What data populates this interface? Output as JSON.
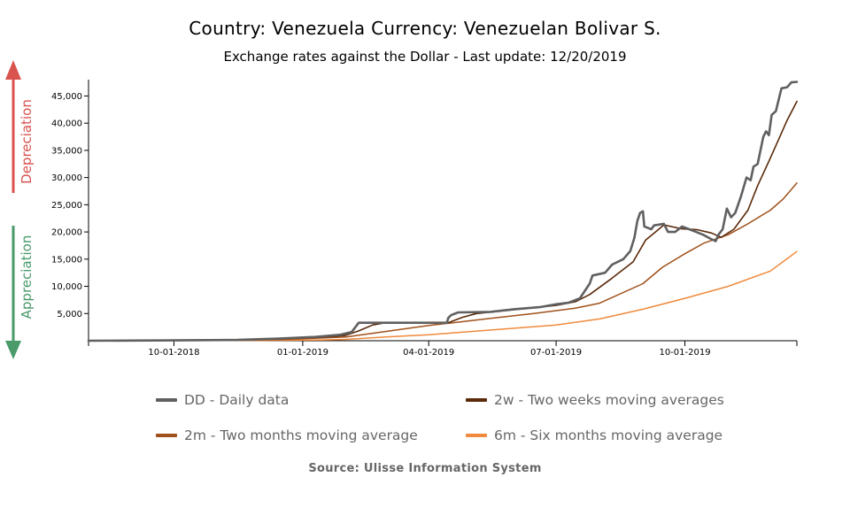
{
  "title": "Country: Venezuela Currency: Venezuelan Bolivar S.",
  "subtitle": "Exchange rates against the Dollar - Last update: 12/20/2019",
  "side_labels": {
    "up": "Depreciation",
    "down": "Appreciation"
  },
  "colors": {
    "up": "#d9534f",
    "down": "#4a9a6a"
  },
  "source": "Source: Ulisse Information System",
  "chart_data": {
    "type": "line",
    "title": "Country: Venezuela Currency: Venezuelan Bolivar S.",
    "subtitle": "Exchange rates against the Dollar - Last update: 12/20/2019",
    "x_range": [
      "2018-08-01",
      "2019-12-20"
    ],
    "ylim": [
      0,
      48000
    ],
    "y_ticks": [
      5000,
      10000,
      15000,
      20000,
      25000,
      30000,
      35000,
      40000,
      45000
    ],
    "y_tick_labels": [
      "5,000",
      "10,000",
      "15,000",
      "20,000",
      "25,000",
      "30,000",
      "35,000",
      "40,000",
      "45,000"
    ],
    "x_ticks": [
      "2018-10-01",
      "2019-01-01",
      "2019-04-01",
      "2019-07-01",
      "2019-10-01"
    ],
    "x_tick_labels": [
      "10-01-2018",
      "01-01-2019",
      "04-01-2019",
      "07-01-2019",
      "10-01-2019"
    ],
    "legend_position": "bottom",
    "series": [
      {
        "name": "DD - Daily data",
        "color": "#606060",
        "width": 2.6,
        "points": [
          [
            "2018-08-01",
            5
          ],
          [
            "2018-10-01",
            60
          ],
          [
            "2018-11-15",
            150
          ],
          [
            "2018-12-15",
            400
          ],
          [
            "2019-01-10",
            700
          ],
          [
            "2019-01-28",
            1100
          ],
          [
            "2019-02-05",
            1600
          ],
          [
            "2019-02-10",
            3300
          ],
          [
            "2019-03-01",
            3300
          ],
          [
            "2019-03-31",
            3300
          ],
          [
            "2019-04-01",
            3300
          ],
          [
            "2019-04-14",
            3300
          ],
          [
            "2019-04-15",
            4200
          ],
          [
            "2019-04-17",
            4700
          ],
          [
            "2019-04-22",
            5200
          ],
          [
            "2019-05-15",
            5300
          ],
          [
            "2019-06-01",
            5800
          ],
          [
            "2019-06-20",
            6200
          ],
          [
            "2019-07-01",
            6700
          ],
          [
            "2019-07-10",
            7000
          ],
          [
            "2019-07-18",
            7800
          ],
          [
            "2019-07-25",
            10500
          ],
          [
            "2019-07-27",
            12000
          ],
          [
            "2019-08-05",
            12500
          ],
          [
            "2019-08-10",
            14000
          ],
          [
            "2019-08-18",
            15000
          ],
          [
            "2019-08-23",
            16500
          ],
          [
            "2019-08-26",
            19000
          ],
          [
            "2019-08-28",
            22000
          ],
          [
            "2019-08-30",
            23500
          ],
          [
            "2019-09-01",
            23800
          ],
          [
            "2019-09-02",
            21000
          ],
          [
            "2019-09-07",
            20500
          ],
          [
            "2019-09-09",
            21200
          ],
          [
            "2019-09-16",
            21500
          ],
          [
            "2019-09-19",
            20000
          ],
          [
            "2019-09-24",
            20000
          ],
          [
            "2019-09-29",
            21000
          ],
          [
            "2019-10-04",
            20500
          ],
          [
            "2019-10-09",
            20000
          ],
          [
            "2019-10-14",
            19500
          ],
          [
            "2019-10-19",
            18800
          ],
          [
            "2019-10-23",
            18300
          ],
          [
            "2019-10-25",
            19500
          ],
          [
            "2019-10-28",
            20500
          ],
          [
            "2019-10-31",
            24300
          ],
          [
            "2019-11-03",
            22700
          ],
          [
            "2019-11-06",
            23500
          ],
          [
            "2019-11-10",
            26500
          ],
          [
            "2019-11-14",
            30000
          ],
          [
            "2019-11-17",
            29500
          ],
          [
            "2019-11-19",
            32000
          ],
          [
            "2019-11-22",
            32500
          ],
          [
            "2019-11-26",
            37500
          ],
          [
            "2019-11-28",
            38500
          ],
          [
            "2019-11-30",
            37800
          ],
          [
            "2019-12-02",
            41500
          ],
          [
            "2019-12-05",
            42200
          ],
          [
            "2019-12-09",
            46400
          ],
          [
            "2019-12-13",
            46600
          ],
          [
            "2019-12-16",
            47500
          ],
          [
            "2019-12-20",
            47600
          ]
        ]
      },
      {
        "name": "2w - Two weeks moving averages",
        "color": "#5a2a0a",
        "width": 1.6,
        "points": [
          [
            "2018-08-01",
            5
          ],
          [
            "2018-10-01",
            50
          ],
          [
            "2018-11-15",
            130
          ],
          [
            "2018-12-15",
            330
          ],
          [
            "2019-01-10",
            600
          ],
          [
            "2019-01-31",
            950
          ],
          [
            "2019-02-10",
            1800
          ],
          [
            "2019-02-20",
            2900
          ],
          [
            "2019-03-01",
            3300
          ],
          [
            "2019-04-15",
            3300
          ],
          [
            "2019-04-25",
            4300
          ],
          [
            "2019-05-05",
            5000
          ],
          [
            "2019-06-01",
            5700
          ],
          [
            "2019-07-01",
            6500
          ],
          [
            "2019-07-15",
            7200
          ],
          [
            "2019-07-25",
            8500
          ],
          [
            "2019-08-10",
            11500
          ],
          [
            "2019-08-25",
            14500
          ],
          [
            "2019-09-03",
            18500
          ],
          [
            "2019-09-10",
            20000
          ],
          [
            "2019-09-16",
            21300
          ],
          [
            "2019-09-28",
            20600
          ],
          [
            "2019-10-10",
            20400
          ],
          [
            "2019-10-20",
            19800
          ],
          [
            "2019-10-27",
            19000
          ],
          [
            "2019-11-05",
            20500
          ],
          [
            "2019-11-15",
            24000
          ],
          [
            "2019-11-22",
            28500
          ],
          [
            "2019-11-30",
            33000
          ],
          [
            "2019-12-07",
            37000
          ],
          [
            "2019-12-13",
            40500
          ],
          [
            "2019-12-20",
            44000
          ]
        ]
      },
      {
        "name": "2m - Two months moving average",
        "color": "#a0501a",
        "width": 1.5,
        "points": [
          [
            "2018-08-01",
            5
          ],
          [
            "2018-10-01",
            30
          ],
          [
            "2018-11-15",
            80
          ],
          [
            "2018-12-15",
            200
          ],
          [
            "2019-01-15",
            500
          ],
          [
            "2019-02-01",
            700
          ],
          [
            "2019-03-01",
            1700
          ],
          [
            "2019-04-01",
            2800
          ],
          [
            "2019-04-15",
            3200
          ],
          [
            "2019-05-15",
            4100
          ],
          [
            "2019-06-15",
            5000
          ],
          [
            "2019-07-15",
            6000
          ],
          [
            "2019-08-01",
            6900
          ],
          [
            "2019-09-01",
            10500
          ],
          [
            "2019-09-15",
            13500
          ],
          [
            "2019-10-01",
            16000
          ],
          [
            "2019-10-15",
            18000
          ],
          [
            "2019-11-01",
            19500
          ],
          [
            "2019-11-15",
            21500
          ],
          [
            "2019-12-01",
            24000
          ],
          [
            "2019-12-10",
            26000
          ],
          [
            "2019-12-20",
            29000
          ]
        ]
      },
      {
        "name": "6m - Six months moving average",
        "color": "#f08a3c",
        "width": 1.5,
        "points": [
          [
            "2018-08-01",
            5
          ],
          [
            "2018-12-01",
            60
          ],
          [
            "2019-01-15",
            150
          ],
          [
            "2019-02-01",
            250
          ],
          [
            "2019-03-01",
            700
          ],
          [
            "2019-04-01",
            1100
          ],
          [
            "2019-05-01",
            1700
          ],
          [
            "2019-06-01",
            2300
          ],
          [
            "2019-07-01",
            2900
          ],
          [
            "2019-08-01",
            4000
          ],
          [
            "2019-09-01",
            5800
          ],
          [
            "2019-10-01",
            7800
          ],
          [
            "2019-11-01",
            10000
          ],
          [
            "2019-12-01",
            12800
          ],
          [
            "2019-12-20",
            16400
          ]
        ]
      }
    ]
  }
}
